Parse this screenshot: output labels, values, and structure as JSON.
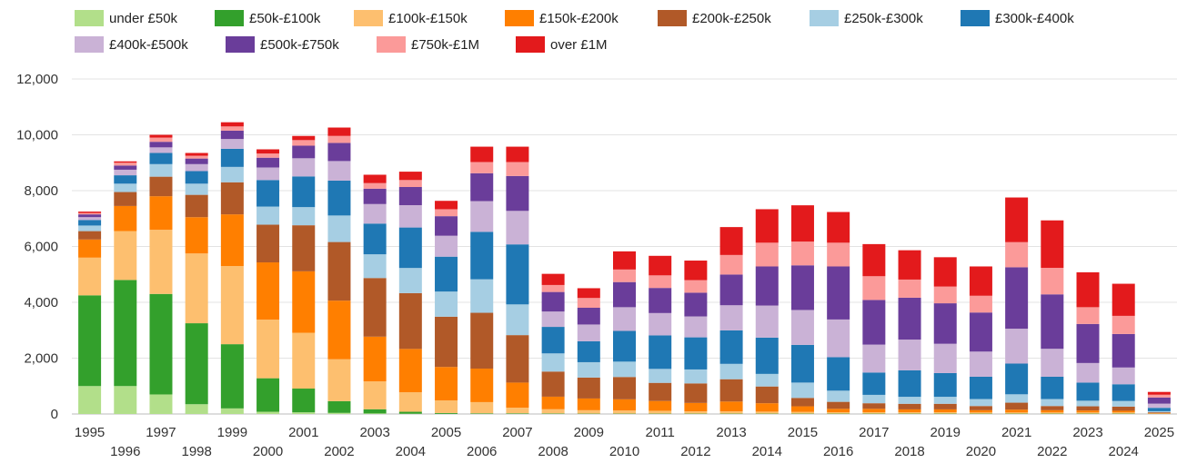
{
  "chart_data": {
    "type": "bar",
    "stacked": true,
    "title": "",
    "xlabel": "",
    "ylabel": "",
    "ylim": [
      0,
      12000
    ],
    "yticks": [
      0,
      2000,
      4000,
      6000,
      8000,
      10000,
      12000
    ],
    "ytick_labels": [
      "0",
      "2,000",
      "4,000",
      "6,000",
      "8,000",
      "10,000",
      "12,000"
    ],
    "grid": true,
    "legend_position": "top-left",
    "categories": [
      "1995",
      "1996",
      "1997",
      "1998",
      "1999",
      "2000",
      "2001",
      "2002",
      "2003",
      "2004",
      "2005",
      "2006",
      "2007",
      "2008",
      "2009",
      "2010",
      "2011",
      "2012",
      "2013",
      "2014",
      "2015",
      "2016",
      "2017",
      "2018",
      "2019",
      "2020",
      "2021",
      "2022",
      "2023",
      "2024",
      "2025"
    ],
    "series": [
      {
        "name": "under £50k",
        "color": "#b2df8a",
        "values": [
          1000,
          1000,
          700,
          350,
          200,
          80,
          60,
          40,
          20,
          10,
          5,
          5,
          5,
          5,
          5,
          5,
          5,
          5,
          5,
          5,
          5,
          5,
          5,
          5,
          5,
          5,
          5,
          5,
          5,
          5,
          0
        ]
      },
      {
        "name": "£50k-£100k",
        "color": "#33a02c",
        "values": [
          3250,
          3800,
          3600,
          2900,
          2300,
          1200,
          850,
          420,
          150,
          70,
          30,
          20,
          20,
          15,
          10,
          10,
          10,
          10,
          10,
          10,
          10,
          10,
          10,
          10,
          10,
          10,
          10,
          10,
          10,
          10,
          5
        ]
      },
      {
        "name": "£100k-£150k",
        "color": "#fdbf6f",
        "values": [
          1350,
          1750,
          2300,
          2500,
          2800,
          2100,
          2000,
          1500,
          1000,
          700,
          450,
          400,
          200,
          150,
          120,
          110,
          100,
          80,
          80,
          70,
          60,
          50,
          50,
          50,
          50,
          40,
          40,
          40,
          40,
          40,
          10
        ]
      },
      {
        "name": "£150k-£200k",
        "color": "#ff7f00",
        "values": [
          650,
          900,
          1200,
          1300,
          1850,
          2050,
          2200,
          2100,
          1600,
          1550,
          1200,
          1200,
          900,
          450,
          420,
          400,
          350,
          300,
          350,
          300,
          200,
          120,
          120,
          100,
          100,
          80,
          100,
          80,
          70,
          60,
          15
        ]
      },
      {
        "name": "£200k-£250k",
        "color": "#b15928",
        "values": [
          300,
          500,
          700,
          800,
          1150,
          1350,
          1650,
          2100,
          2100,
          2000,
          1800,
          2000,
          1700,
          900,
          750,
          800,
          650,
          700,
          800,
          600,
          300,
          250,
          200,
          200,
          200,
          150,
          250,
          150,
          150,
          150,
          30
        ]
      },
      {
        "name": "£250k-£300k",
        "color": "#a6cee3",
        "values": [
          200,
          300,
          450,
          400,
          550,
          650,
          650,
          950,
          850,
          900,
          900,
          1200,
          1100,
          650,
          550,
          550,
          500,
          500,
          550,
          450,
          550,
          400,
          300,
          250,
          250,
          250,
          300,
          250,
          200,
          200,
          40
        ]
      },
      {
        "name": "£300k-£400k",
        "color": "#1f78b4",
        "values": [
          200,
          300,
          400,
          450,
          650,
          950,
          1100,
          1250,
          1100,
          1450,
          1250,
          1700,
          2150,
          950,
          750,
          1100,
          1200,
          1150,
          1200,
          1300,
          1350,
          1200,
          800,
          950,
          850,
          800,
          1100,
          800,
          650,
          600,
          120
        ]
      },
      {
        "name": "£400k-£500k",
        "color": "#cab2d6",
        "values": [
          100,
          200,
          200,
          250,
          350,
          450,
          650,
          700,
          700,
          800,
          750,
          1100,
          1200,
          550,
          600,
          850,
          800,
          750,
          900,
          1150,
          1250,
          1350,
          1000,
          1100,
          1050,
          900,
          1250,
          1000,
          700,
          600,
          150
        ]
      },
      {
        "name": "£500k-£750k",
        "color": "#6a3d9a",
        "values": [
          100,
          150,
          200,
          200,
          300,
          350,
          450,
          650,
          550,
          650,
          700,
          1000,
          1250,
          700,
          600,
          900,
          900,
          850,
          1100,
          1400,
          1600,
          1900,
          1600,
          1500,
          1450,
          1400,
          2200,
          1950,
          1400,
          1200,
          220
        ]
      },
      {
        "name": "£750k-£1M",
        "color": "#fb9a99",
        "values": [
          50,
          100,
          150,
          100,
          150,
          150,
          200,
          250,
          200,
          250,
          250,
          400,
          500,
          250,
          350,
          450,
          450,
          450,
          700,
          850,
          850,
          850,
          850,
          650,
          600,
          600,
          900,
          950,
          600,
          650,
          100
        ]
      },
      {
        "name": "over £1M",
        "color": "#e31a1c",
        "values": [
          50,
          50,
          100,
          100,
          150,
          150,
          150,
          300,
          300,
          300,
          300,
          550,
          550,
          400,
          350,
          650,
          700,
          700,
          1000,
          1200,
          1300,
          1100,
          1150,
          1050,
          1050,
          1050,
          1600,
          1700,
          1250,
          1150,
          100
        ]
      }
    ]
  }
}
